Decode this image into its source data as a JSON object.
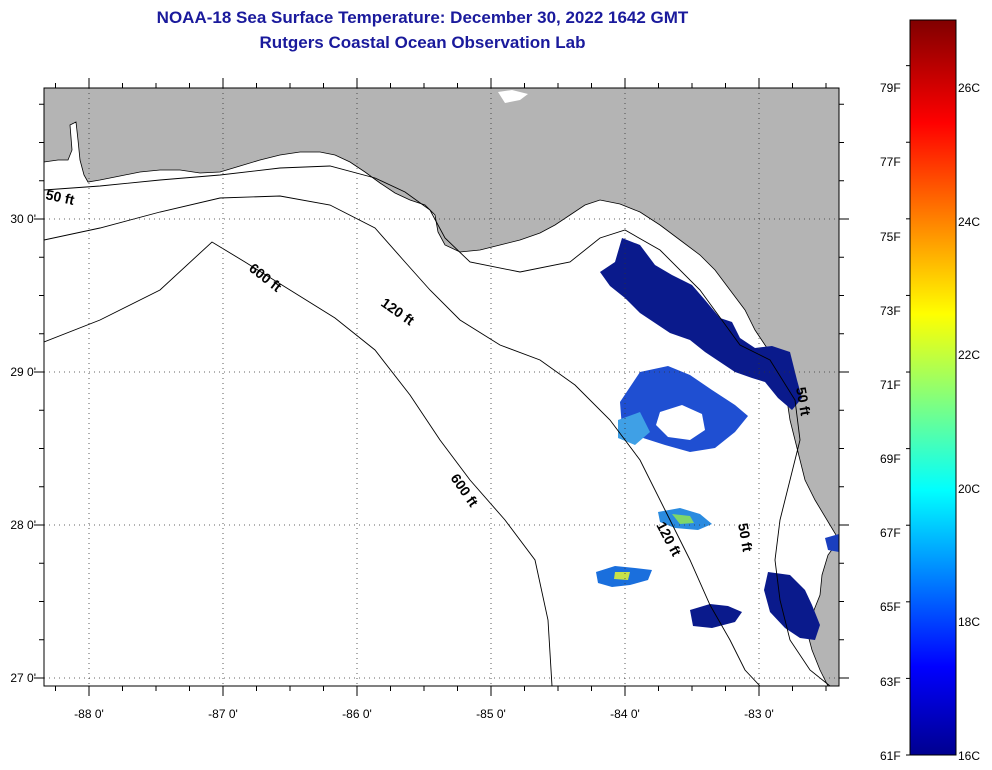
{
  "title": {
    "line1": "NOAA-18 Sea Surface Temperature:  December 30, 2022 1642 GMT",
    "line2": "Rutgers Coastal Ocean Observation Lab"
  },
  "map": {
    "lon_ticks": [
      "-88 0'",
      "-87 0'",
      "-86 0'",
      "-85 0'",
      "-84 0'",
      "-83 0'"
    ],
    "lat_ticks": [
      "30 0'",
      "29 0'",
      "28 0'",
      "27 0'"
    ],
    "contours": [
      {
        "label": "50 ft"
      },
      {
        "label": "600 ft"
      },
      {
        "label": "120 ft"
      },
      {
        "label": "600 ft"
      },
      {
        "label": "120 ft"
      },
      {
        "label": "50 ft"
      },
      {
        "label": "50 ft"
      }
    ],
    "colors": {
      "land": "#b4b4b4",
      "no_data": "#ffffff",
      "sst_cold": "#0a1a8c"
    }
  },
  "colorbar": {
    "fahrenheit_labels": [
      "79F",
      "77F",
      "75F",
      "73F",
      "71F",
      "69F",
      "67F",
      "65F",
      "63F",
      "61F"
    ],
    "celsius_labels": [
      "26C",
      "24C",
      "22C",
      "20C",
      "18C",
      "16C"
    ],
    "range_f": [
      61,
      80
    ],
    "range_c": [
      16,
      27
    ]
  }
}
